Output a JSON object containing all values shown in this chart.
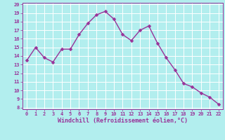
{
  "x": [
    0,
    1,
    2,
    3,
    4,
    5,
    6,
    7,
    8,
    9,
    10,
    11,
    12,
    13,
    14,
    15,
    16,
    17,
    18,
    19,
    20,
    21,
    22
  ],
  "y": [
    13.5,
    15.0,
    13.8,
    13.3,
    14.8,
    14.8,
    16.5,
    17.8,
    18.8,
    19.2,
    18.3,
    16.5,
    15.8,
    17.0,
    17.5,
    15.5,
    13.8,
    12.4,
    10.8,
    10.4,
    9.7,
    9.2,
    8.4
  ],
  "line_color": "#993399",
  "marker_color": "#993399",
  "bg_color": "#b2eeee",
  "grid_color": "#ffffff",
  "xlabel": "Windchill (Refroidissement éolien,°C)",
  "xlabel_color": "#993399",
  "ylim": [
    8,
    20
  ],
  "xlim": [
    -0.5,
    22.5
  ],
  "yticks": [
    8,
    9,
    10,
    11,
    12,
    13,
    14,
    15,
    16,
    17,
    18,
    19,
    20
  ],
  "xticks": [
    0,
    1,
    2,
    3,
    4,
    5,
    6,
    7,
    8,
    9,
    10,
    11,
    12,
    13,
    14,
    15,
    16,
    17,
    18,
    19,
    20,
    21,
    22
  ],
  "tick_color": "#993399",
  "tick_label_color": "#993399",
  "spine_color": "#993399",
  "marker_size": 2.5,
  "line_width": 1.0,
  "tick_fontsize": 5.0,
  "xlabel_fontsize": 6.0
}
